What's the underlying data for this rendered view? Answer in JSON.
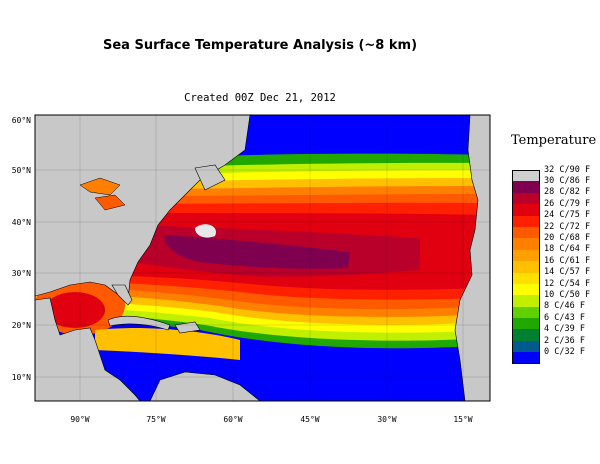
{
  "title": "Sea Surface Temperature Analysis (~8 km)",
  "subtitle": "Created 00Z Dec 21, 2012",
  "legend": {
    "title": "Temperature",
    "items": [
      {
        "label": "32 C/90 F",
        "color": "#cfcfcf"
      },
      {
        "label": "30 C/86 F",
        "color": "#800050"
      },
      {
        "label": "28 C/82 F",
        "color": "#b8002a"
      },
      {
        "label": "26 C/79 F",
        "color": "#e00010"
      },
      {
        "label": "24 C/75 F",
        "color": "#ff2000"
      },
      {
        "label": "22 C/72 F",
        "color": "#ff5a00"
      },
      {
        "label": "20 C/68 F",
        "color": "#ff8000"
      },
      {
        "label": "18 C/64 F",
        "color": "#ffa000"
      },
      {
        "label": "16 C/61 F",
        "color": "#ffc000"
      },
      {
        "label": "14 C/57 F",
        "color": "#ffe000"
      },
      {
        "label": "12 C/54 F",
        "color": "#ffff00"
      },
      {
        "label": "10 C/50 F",
        "color": "#c0f000"
      },
      {
        "label": "8 C/46 F",
        "color": "#60d000"
      },
      {
        "label": "6 C/43 F",
        "color": "#20a800"
      },
      {
        "label": "4 C/39 F",
        "color": "#008030"
      },
      {
        "label": "2 C/36 F",
        "color": "#005a90"
      },
      {
        "label": "0 C/32 F",
        "color": "#0000ff"
      }
    ]
  },
  "map": {
    "land_color": "#c8c8c8",
    "lat_labels": [
      "60°N",
      "50°N",
      "40°N",
      "30°N",
      "20°N",
      "10°N"
    ],
    "lon_labels": [
      "90°W",
      "75°W",
      "60°W",
      "45°W",
      "30°W",
      "15°W"
    ]
  }
}
